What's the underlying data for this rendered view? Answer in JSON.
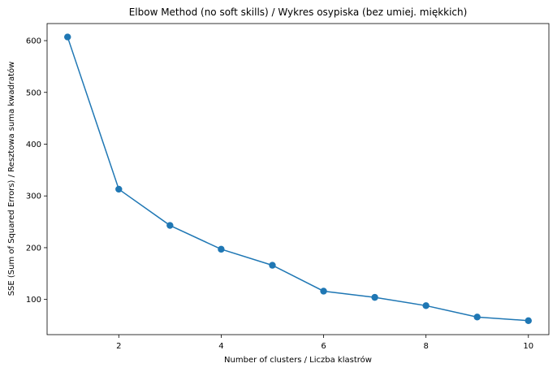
{
  "chart_data": {
    "type": "line",
    "title": "Elbow Method (no soft skills) / Wykres osypiska (bez umiej. miękkich)",
    "xlabel": "Number of clusters / Liczba klastrów",
    "ylabel": "SSE (Sum of Squared Errors) / Resztowa suma kwadratów",
    "x": [
      1,
      2,
      3,
      4,
      5,
      6,
      7,
      8,
      9,
      10
    ],
    "series": [
      {
        "values": [
          607,
          313,
          243,
          197,
          166,
          116,
          104,
          88,
          66,
          59
        ]
      }
    ],
    "xlim": [
      0.6,
      10.4
    ],
    "ylim": [
      32,
      633
    ],
    "xticks": [
      2,
      4,
      6,
      8,
      10
    ],
    "yticks": [
      100,
      200,
      300,
      400,
      500,
      600
    ],
    "grid": false,
    "line_color": "#1f77b4",
    "marker": "circle"
  }
}
